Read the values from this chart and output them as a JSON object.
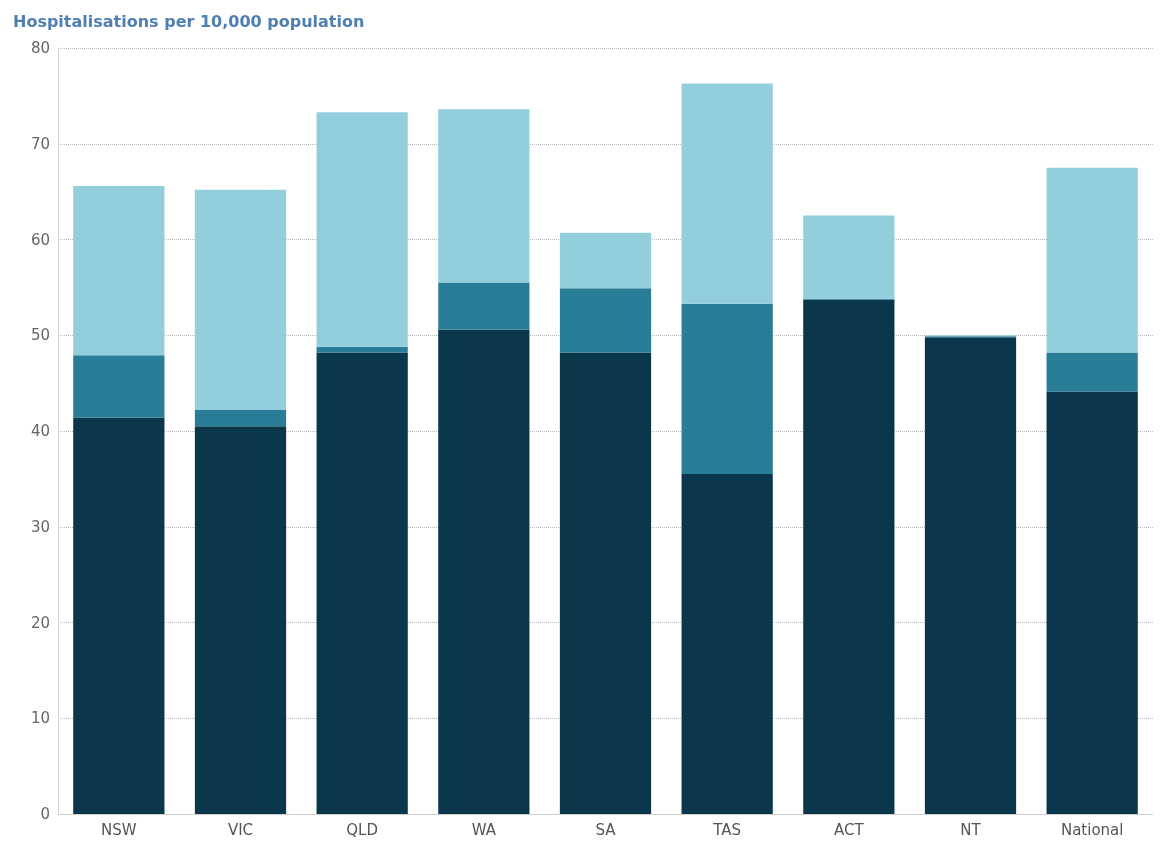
{
  "chart_data": {
    "type": "bar",
    "title": "Hospitalisations per 10,000 population",
    "categories": [
      "NSW",
      "VIC",
      "QLD",
      "WA",
      "SA",
      "TAS",
      "ACT",
      "NT",
      "National"
    ],
    "stacked": true,
    "series": [
      {
        "color": "#0b374d",
        "values": [
          41.4,
          40.5,
          48.2,
          50.6,
          48.2,
          35.5,
          53.7,
          49.8,
          44.1
        ]
      },
      {
        "color": "#2a7d97",
        "values": [
          6.5,
          1.7,
          0.6,
          4.9,
          6.7,
          17.8,
          0.1,
          0.1,
          4.1
        ]
      },
      {
        "color": "#93cedd",
        "values": [
          17.7,
          23.0,
          24.5,
          18.1,
          5.8,
          23.0,
          8.7,
          0.1,
          19.3
        ]
      }
    ],
    "ylim": [
      0,
      80
    ],
    "yticks": [
      0,
      10,
      20,
      30,
      40,
      50,
      60,
      70,
      80
    ],
    "grid": "y"
  }
}
